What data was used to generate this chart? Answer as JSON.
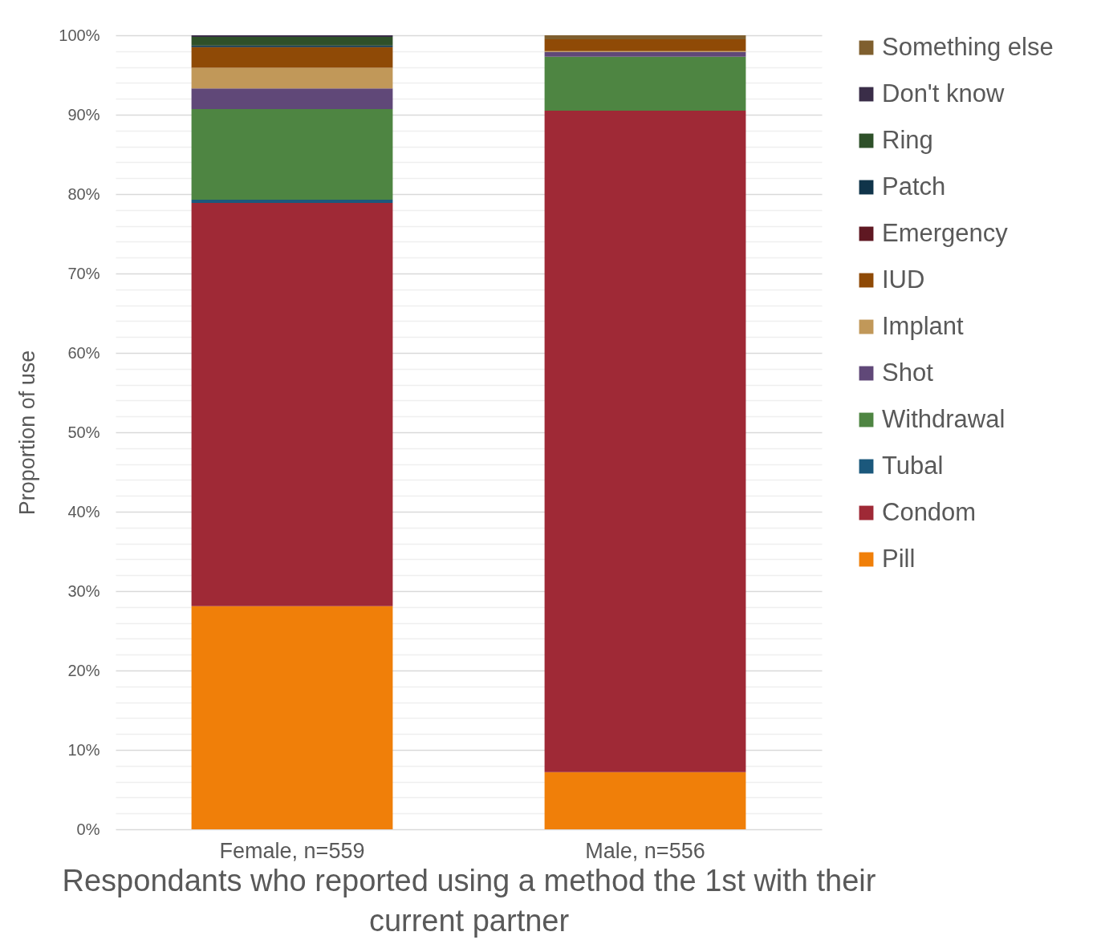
{
  "chart_data": {
    "type": "bar",
    "stacked": true,
    "xlabel": "Respondants who reported using a method the 1st with their current partner",
    "ylabel": "Proportion of use",
    "categories": [
      "Female, n=559",
      "Male, n=556"
    ],
    "series": [
      {
        "name": "Pill",
        "color": "#f07f09",
        "values": [
          28.1,
          7.2
        ]
      },
      {
        "name": "Condom",
        "color": "#9f2936",
        "values": [
          50.8,
          83.3
        ]
      },
      {
        "name": "Tubal",
        "color": "#1b587c",
        "values": [
          0.4,
          0
        ]
      },
      {
        "name": "Withdrawal",
        "color": "#4e8542",
        "values": [
          11.4,
          6.8
        ]
      },
      {
        "name": "Shot",
        "color": "#604878",
        "values": [
          2.6,
          0.6
        ]
      },
      {
        "name": "Implant",
        "color": "#c19859",
        "values": [
          2.6,
          0.1
        ]
      },
      {
        "name": "IUD",
        "color": "#8f4a06",
        "values": [
          2.6,
          1.5
        ]
      },
      {
        "name": "Emergency",
        "color": "#5f1822",
        "values": [
          0,
          0
        ]
      },
      {
        "name": "Patch",
        "color": "#10344a",
        "values": [
          0.2,
          0
        ]
      },
      {
        "name": "Ring",
        "color": "#2e5029",
        "values": [
          1.1,
          0
        ]
      },
      {
        "name": "Don't know",
        "color": "#3a2d48",
        "values": [
          0.2,
          0
        ]
      },
      {
        "name": "Something else",
        "color": "#7f5f2e",
        "values": [
          0,
          0.5
        ]
      }
    ],
    "ylim": [
      0,
      100
    ],
    "yticks": [
      {
        "value": 0,
        "label": "0%"
      },
      {
        "value": 2,
        "label": null
      },
      {
        "value": 4,
        "label": null
      },
      {
        "value": 6,
        "label": null
      },
      {
        "value": 8,
        "label": null
      },
      {
        "value": 10,
        "label": "10%"
      },
      {
        "value": 12,
        "label": null
      },
      {
        "value": 14,
        "label": null
      },
      {
        "value": 16,
        "label": null
      },
      {
        "value": 18,
        "label": null
      },
      {
        "value": 20,
        "label": "20%"
      },
      {
        "value": 22,
        "label": null
      },
      {
        "value": 24,
        "label": null
      },
      {
        "value": 26,
        "label": null
      },
      {
        "value": 28,
        "label": null
      },
      {
        "value": 30,
        "label": "30%"
      },
      {
        "value": 32,
        "label": null
      },
      {
        "value": 34,
        "label": null
      },
      {
        "value": 36,
        "label": null
      },
      {
        "value": 38,
        "label": null
      },
      {
        "value": 40,
        "label": "40%"
      },
      {
        "value": 42,
        "label": null
      },
      {
        "value": 44,
        "label": null
      },
      {
        "value": 46,
        "label": null
      },
      {
        "value": 48,
        "label": null
      },
      {
        "value": 50,
        "label": "50%"
      },
      {
        "value": 52,
        "label": null
      },
      {
        "value": 54,
        "label": null
      },
      {
        "value": 56,
        "label": null
      },
      {
        "value": 58,
        "label": null
      },
      {
        "value": 60,
        "label": "60%"
      },
      {
        "value": 62,
        "label": null
      },
      {
        "value": 64,
        "label": null
      },
      {
        "value": 66,
        "label": null
      },
      {
        "value": 68,
        "label": null
      },
      {
        "value": 70,
        "label": "70%"
      },
      {
        "value": 72,
        "label": null
      },
      {
        "value": 74,
        "label": null
      },
      {
        "value": 76,
        "label": null
      },
      {
        "value": 78,
        "label": null
      },
      {
        "value": 80,
        "label": "80%"
      },
      {
        "value": 82,
        "label": null
      },
      {
        "value": 84,
        "label": null
      },
      {
        "value": 86,
        "label": null
      },
      {
        "value": 88,
        "label": null
      },
      {
        "value": 90,
        "label": "90%"
      },
      {
        "value": 92,
        "label": null
      },
      {
        "value": 94,
        "label": null
      },
      {
        "value": 96,
        "label": null
      },
      {
        "value": 98,
        "label": null
      },
      {
        "value": 100,
        "label": "100%"
      }
    ],
    "grid": true,
    "legend": "right"
  }
}
